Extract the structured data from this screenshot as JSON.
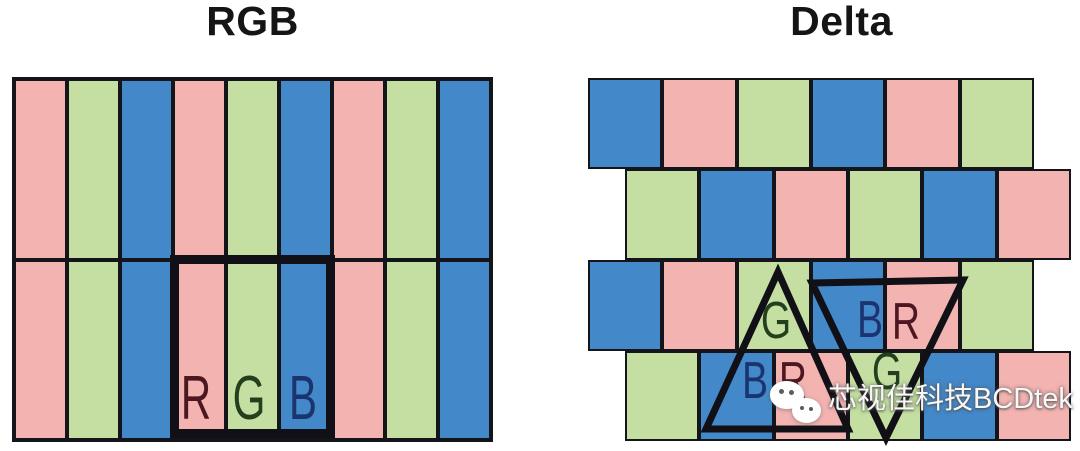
{
  "colors": {
    "R": "#f3b3b1",
    "G": "#c4dfa1",
    "B": "#4388c9",
    "grid_line": "#14141b",
    "label_R": "#4d1721",
    "label_G": "#233f1e",
    "label_B": "#1b3470"
  },
  "panels": {
    "rgb": {
      "title": "RGB",
      "row_count": 2,
      "columns": [
        "R",
        "G",
        "B",
        "R",
        "G",
        "B",
        "R",
        "G",
        "B"
      ],
      "labels": [
        "R",
        "G",
        "B"
      ]
    },
    "delta": {
      "title": "Delta",
      "rows": [
        [
          "B",
          "R",
          "G",
          "B",
          "R",
          "G"
        ],
        [
          "G",
          "B",
          "R",
          "G",
          "B",
          "R"
        ],
        [
          "B",
          "R",
          "G",
          "B",
          "R",
          "G"
        ],
        [
          "G",
          "B",
          "R",
          "G",
          "B",
          "R"
        ]
      ],
      "row3_labels": [
        "G",
        "B",
        "R"
      ],
      "row4_labels": [
        "B",
        "R",
        "G"
      ]
    }
  },
  "watermark": {
    "icon": "wechat-icon",
    "text": "芯视佳科技BCDtek"
  }
}
